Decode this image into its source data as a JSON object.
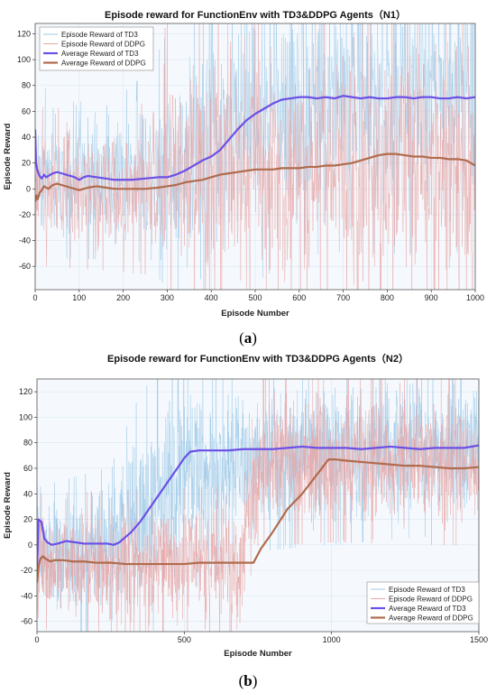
{
  "chart_data": [
    {
      "type": "line",
      "title": "Episode reward for FunctionEnv with TD3&DDPG Agents（N1）",
      "xlabel": "Episode Number",
      "ylabel": "Episode Reward",
      "xlim": [
        0,
        1000
      ],
      "ylim": [
        -78,
        128
      ],
      "xticks": [
        0,
        100,
        200,
        300,
        400,
        500,
        600,
        700,
        800,
        900,
        1000
      ],
      "yticks": [
        -60,
        -40,
        -20,
        0,
        20,
        40,
        60,
        80,
        100,
        120
      ],
      "grid": true,
      "legend": "top-left",
      "caption": "a",
      "series": [
        {
          "name": "Episode Reward of TD3",
          "kind": "raw",
          "color": "#9ec9e6",
          "noise": [
            [
              0,
              12,
              30
            ],
            [
              100,
              12,
              30
            ],
            [
              250,
              14,
              32
            ],
            [
              300,
              22,
              45
            ],
            [
              400,
              40,
              55
            ],
            [
              500,
              60,
              60
            ],
            [
              600,
              70,
              55
            ],
            [
              1000,
              72,
              55
            ]
          ]
        },
        {
          "name": "Episode Reward of DDPG",
          "kind": "raw",
          "color": "#e8a4a4",
          "noise": [
            [
              0,
              2,
              28
            ],
            [
              100,
              0,
              28
            ],
            [
              250,
              0,
              30
            ],
            [
              300,
              10,
              55
            ],
            [
              400,
              12,
              60
            ],
            [
              600,
              16,
              60
            ],
            [
              1000,
              18,
              60
            ]
          ]
        },
        {
          "name": "Average Reward of TD3",
          "kind": "avg",
          "color": "#6b4fe6",
          "x": [
            0,
            2,
            5,
            10,
            15,
            20,
            25,
            30,
            40,
            50,
            60,
            70,
            80,
            90,
            100,
            110,
            120,
            140,
            160,
            180,
            200,
            220,
            250,
            280,
            300,
            320,
            340,
            360,
            380,
            400,
            420,
            440,
            460,
            480,
            500,
            520,
            540,
            560,
            580,
            600,
            620,
            640,
            660,
            680,
            700,
            720,
            740,
            760,
            780,
            800,
            820,
            840,
            860,
            880,
            900,
            920,
            940,
            960,
            980,
            1000
          ],
          "y": [
            46,
            20,
            14,
            10,
            8,
            11,
            9,
            10,
            12,
            13,
            12,
            11,
            10,
            9,
            7,
            9,
            10,
            9,
            8,
            7,
            7,
            7,
            8,
            9,
            9,
            11,
            14,
            18,
            22,
            25,
            30,
            38,
            46,
            53,
            58,
            62,
            66,
            69,
            70,
            71,
            71,
            70,
            71,
            70,
            72,
            71,
            70,
            71,
            70,
            70,
            71,
            71,
            70,
            71,
            71,
            70,
            70,
            71,
            70,
            71
          ]
        },
        {
          "name": "Average Reward of DDPG",
          "kind": "avg",
          "color": "#b06b4c",
          "x": [
            0,
            3,
            6,
            10,
            15,
            20,
            30,
            40,
            50,
            60,
            70,
            80,
            90,
            100,
            110,
            120,
            140,
            160,
            180,
            200,
            220,
            250,
            280,
            300,
            320,
            340,
            360,
            380,
            400,
            420,
            440,
            460,
            480,
            500,
            520,
            540,
            560,
            580,
            600,
            620,
            640,
            660,
            680,
            700,
            720,
            740,
            760,
            780,
            800,
            820,
            840,
            860,
            880,
            900,
            920,
            940,
            960,
            980,
            1000
          ],
          "y": [
            -10,
            -5,
            -8,
            -3,
            -1,
            2,
            0,
            3,
            4,
            3,
            2,
            1,
            0,
            -1,
            0,
            1,
            2,
            1,
            0,
            0,
            0,
            0,
            1,
            2,
            3,
            5,
            6,
            7,
            9,
            11,
            12,
            13,
            14,
            15,
            15,
            15,
            16,
            16,
            16,
            17,
            17,
            18,
            18,
            19,
            20,
            22,
            24,
            26,
            27,
            27,
            26,
            25,
            25,
            24,
            24,
            23,
            23,
            22,
            18
          ]
        }
      ]
    },
    {
      "type": "line",
      "title": "Episode reward for FunctionEnv with TD3&DDPG Agents（N2）",
      "xlabel": "Episode Number",
      "ylabel": "Episode Reward",
      "xlim": [
        0,
        1500
      ],
      "ylim": [
        -68,
        130
      ],
      "xticks": [
        0,
        500,
        1000,
        1500
      ],
      "yticks": [
        -60,
        -40,
        -20,
        0,
        20,
        40,
        60,
        80,
        100,
        120
      ],
      "grid": true,
      "legend": "bottom-right",
      "caption": "b",
      "series": [
        {
          "name": "Episode Reward of TD3",
          "kind": "raw",
          "color": "#9ec9e6",
          "noise": [
            [
              0,
              -10,
              25
            ],
            [
              250,
              -5,
              30
            ],
            [
              350,
              20,
              45
            ],
            [
              500,
              60,
              45
            ],
            [
              750,
              72,
              35
            ],
            [
              1500,
              76,
              30
            ]
          ]
        },
        {
          "name": "Episode Reward of DDPG",
          "kind": "raw",
          "color": "#e8a4a4",
          "noise": [
            [
              0,
              -15,
              25
            ],
            [
              700,
              -15,
              28
            ],
            [
              750,
              65,
              30
            ],
            [
              1000,
              68,
              30
            ],
            [
              1500,
              65,
              30
            ]
          ]
        },
        {
          "name": "Average Reward of TD3",
          "kind": "avg",
          "color": "#6b4fe6",
          "x": [
            0,
            5,
            15,
            25,
            35,
            50,
            70,
            100,
            130,
            160,
            200,
            240,
            260,
            280,
            300,
            320,
            350,
            380,
            410,
            440,
            470,
            500,
            520,
            550,
            600,
            650,
            700,
            750,
            800,
            850,
            900,
            950,
            1000,
            1050,
            1100,
            1150,
            1200,
            1250,
            1300,
            1350,
            1400,
            1450,
            1500
          ],
          "y": [
            -22,
            20,
            18,
            5,
            2,
            0,
            1,
            3,
            2,
            1,
            1,
            1,
            0,
            2,
            6,
            10,
            18,
            28,
            38,
            48,
            58,
            68,
            73,
            74,
            74,
            74,
            75,
            75,
            75,
            76,
            77,
            76,
            76,
            76,
            75,
            76,
            77,
            76,
            75,
            76,
            76,
            76,
            78
          ]
        },
        {
          "name": "Average Reward of DDPG",
          "kind": "avg",
          "color": "#b06b4c",
          "x": [
            0,
            5,
            10,
            15,
            20,
            30,
            45,
            60,
            90,
            120,
            160,
            200,
            250,
            300,
            350,
            400,
            450,
            500,
            550,
            600,
            650,
            700,
            735,
            760,
            800,
            850,
            900,
            950,
            990,
            1010,
            1050,
            1100,
            1150,
            1200,
            1250,
            1300,
            1350,
            1400,
            1450,
            1500
          ],
          "y": [
            -30,
            -18,
            -12,
            -10,
            -9,
            -11,
            -13,
            -12,
            -12,
            -13,
            -13,
            -14,
            -14,
            -15,
            -15,
            -15,
            -15,
            -15,
            -14,
            -14,
            -14,
            -14,
            -14,
            -3,
            10,
            28,
            40,
            55,
            67,
            67,
            66,
            65,
            64,
            63,
            62,
            62,
            61,
            60,
            60,
            61
          ]
        }
      ]
    }
  ]
}
